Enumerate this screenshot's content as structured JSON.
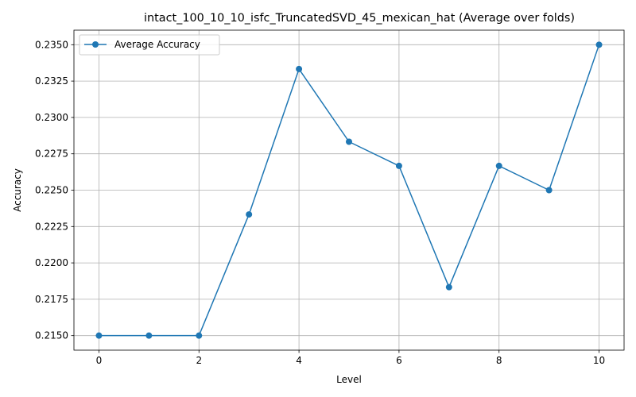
{
  "chart_data": {
    "type": "line",
    "title": "intact_100_10_10_isfc_TruncatedSVD_45_mexican_hat (Average over folds)",
    "xlabel": "Level",
    "ylabel": "Accuracy",
    "x": [
      0,
      1,
      2,
      3,
      4,
      5,
      6,
      7,
      8,
      9,
      10
    ],
    "series": [
      {
        "name": "Average Accuracy",
        "color": "#1f77b4",
        "marker": "circle",
        "values": [
          0.215,
          0.215,
          0.215,
          0.22333,
          0.23333,
          0.22833,
          0.22667,
          0.21833,
          0.22667,
          0.225,
          0.235
        ]
      }
    ],
    "xlim": [
      -0.5,
      10.5
    ],
    "ylim": [
      0.214,
      0.236
    ],
    "xticks": [
      0,
      2,
      4,
      6,
      8,
      10
    ],
    "xtick_labels": [
      "0",
      "2",
      "4",
      "6",
      "8",
      "10"
    ],
    "yticks": [
      0.215,
      0.2175,
      0.22,
      0.2225,
      0.225,
      0.2275,
      0.23,
      0.2325,
      0.235
    ],
    "ytick_labels": [
      "0.2150",
      "0.2175",
      "0.2200",
      "0.2225",
      "0.2250",
      "0.2275",
      "0.2300",
      "0.2325",
      "0.2350"
    ],
    "grid": true,
    "legend_position": "top-left"
  }
}
